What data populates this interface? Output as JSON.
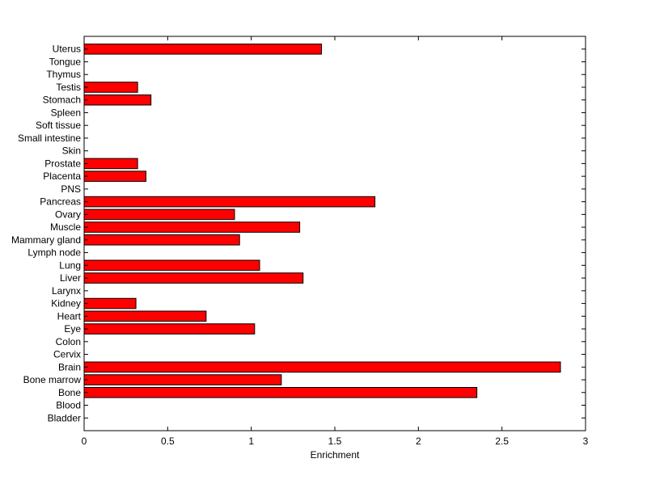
{
  "chart_data": {
    "type": "bar",
    "orientation": "horizontal",
    "title": "",
    "xlabel": "Enrichment",
    "ylabel": "",
    "xlim": [
      0,
      3
    ],
    "xticks": [
      "0",
      "0.5",
      "1",
      "1.5",
      "2",
      "2.5",
      "3"
    ],
    "grid": false,
    "legend": false,
    "bar_color": "#ff0000",
    "categories": [
      "Bladder",
      "Blood",
      "Bone",
      "Bone marrow",
      "Brain",
      "Cervix",
      "Colon",
      "Eye",
      "Heart",
      "Kidney",
      "Larynx",
      "Liver",
      "Lung",
      "Lymph node",
      "Mammary gland",
      "Muscle",
      "Ovary",
      "Pancreas",
      "PNS",
      "Placenta",
      "Prostate",
      "Skin",
      "Small intestine",
      "Soft tissue",
      "Spleen",
      "Stomach",
      "Testis",
      "Thymus",
      "Tongue",
      "Uterus"
    ],
    "values": [
      0,
      0,
      2.35,
      1.18,
      2.85,
      0,
      0,
      1.02,
      0.73,
      0.31,
      0,
      1.31,
      1.05,
      0,
      0.93,
      1.29,
      0.9,
      1.74,
      0,
      0.37,
      0.32,
      0,
      0,
      0,
      0,
      0.4,
      0.32,
      0,
      0,
      1.42
    ]
  }
}
